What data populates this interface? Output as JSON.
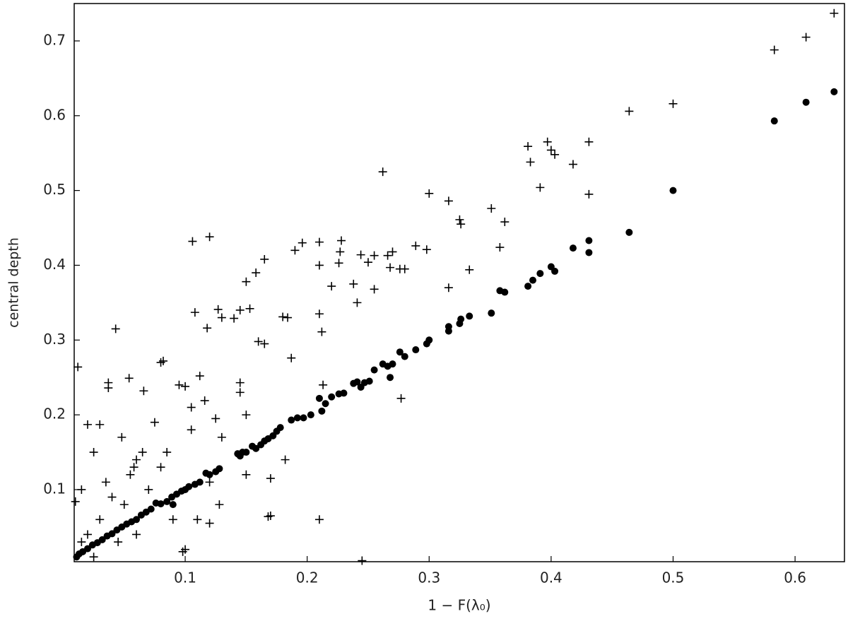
{
  "chart_data": {
    "type": "scatter",
    "xlabel": "1 − F(λ₀)",
    "ylabel": "central depth",
    "xlim": [
      0.009,
      0.6405
    ],
    "ylim": [
      0.0036,
      0.75
    ],
    "xticks": [
      0.1,
      0.2,
      0.3,
      0.4,
      0.5,
      0.6
    ],
    "yticks": [
      0.1,
      0.2,
      0.3,
      0.4,
      0.5,
      0.6,
      0.7
    ],
    "series": [
      {
        "marker": "o",
        "color": "#000000",
        "x": [
          0.632,
          0.609,
          0.583,
          0.5,
          0.464,
          0.431,
          0.431,
          0.418,
          0.403,
          0.4,
          0.391,
          0.385,
          0.381,
          0.362,
          0.358,
          0.351,
          0.333,
          0.326,
          0.325,
          0.316,
          0.316,
          0.3,
          0.298,
          0.289,
          0.28,
          0.276,
          0.27,
          0.268,
          0.266,
          0.262,
          0.255,
          0.251,
          0.247,
          0.244,
          0.241,
          0.238,
          0.23,
          0.226,
          0.22,
          0.215,
          0.212,
          0.21,
          0.203,
          0.197,
          0.192,
          0.187,
          0.178,
          0.175,
          0.172,
          0.168,
          0.165,
          0.162,
          0.158,
          0.155,
          0.15,
          0.147,
          0.145,
          0.143,
          0.128,
          0.125,
          0.12,
          0.117,
          0.112,
          0.108,
          0.103,
          0.1,
          0.097,
          0.093,
          0.089,
          0.085,
          0.08,
          0.076,
          0.072,
          0.068,
          0.064,
          0.06,
          0.056,
          0.052,
          0.048,
          0.044,
          0.04,
          0.036,
          0.032,
          0.028,
          0.024,
          0.02,
          0.016,
          0.013,
          0.011,
          0.09
        ],
        "values": [
          0.632,
          0.618,
          0.593,
          0.5,
          0.444,
          0.433,
          0.417,
          0.423,
          0.392,
          0.398,
          0.389,
          0.38,
          0.372,
          0.364,
          0.366,
          0.336,
          0.332,
          0.328,
          0.322,
          0.318,
          0.312,
          0.3,
          0.295,
          0.287,
          0.278,
          0.284,
          0.268,
          0.25,
          0.265,
          0.268,
          0.26,
          0.245,
          0.243,
          0.237,
          0.244,
          0.242,
          0.229,
          0.228,
          0.224,
          0.215,
          0.205,
          0.222,
          0.2,
          0.196,
          0.196,
          0.193,
          0.183,
          0.178,
          0.172,
          0.168,
          0.165,
          0.16,
          0.155,
          0.158,
          0.15,
          0.15,
          0.145,
          0.148,
          0.128,
          0.124,
          0.12,
          0.122,
          0.11,
          0.107,
          0.104,
          0.1,
          0.098,
          0.094,
          0.09,
          0.084,
          0.081,
          0.082,
          0.074,
          0.07,
          0.066,
          0.06,
          0.057,
          0.054,
          0.05,
          0.046,
          0.041,
          0.038,
          0.033,
          0.029,
          0.026,
          0.021,
          0.017,
          0.014,
          0.01,
          0.08
        ]
      },
      {
        "marker": "+",
        "color": "#000000",
        "x": [
          0.632,
          0.609,
          0.583,
          0.5,
          0.464,
          0.431,
          0.431,
          0.418,
          0.403,
          0.4,
          0.397,
          0.391,
          0.383,
          0.381,
          0.362,
          0.358,
          0.351,
          0.333,
          0.326,
          0.325,
          0.316,
          0.316,
          0.3,
          0.298,
          0.289,
          0.28,
          0.276,
          0.27,
          0.268,
          0.266,
          0.262,
          0.255,
          0.25,
          0.244,
          0.241,
          0.238,
          0.228,
          0.227,
          0.226,
          0.21,
          0.21,
          0.21,
          0.212,
          0.22,
          0.196,
          0.187,
          0.18,
          0.165,
          0.158,
          0.15,
          0.153,
          0.14,
          0.12,
          0.106,
          0.108,
          0.127,
          0.13,
          0.118,
          0.112,
          0.116,
          0.043,
          0.012,
          0.037,
          0.037,
          0.054,
          0.066,
          0.08,
          0.082,
          0.02,
          0.03,
          0.048,
          0.06,
          0.055,
          0.025,
          0.015,
          0.01,
          0.035,
          0.04,
          0.07,
          0.09,
          0.1,
          0.098,
          0.17,
          0.168,
          0.21,
          0.245,
          0.277,
          0.182,
          0.17,
          0.15,
          0.16,
          0.165,
          0.145,
          0.145,
          0.19,
          0.184,
          0.255,
          0.213,
          0.125,
          0.095,
          0.1,
          0.105,
          0.075,
          0.065,
          0.058,
          0.05,
          0.03,
          0.02,
          0.015,
          0.025,
          0.045,
          0.06,
          0.08,
          0.085,
          0.11,
          0.12,
          0.128,
          0.15,
          0.105,
          0.13,
          0.12,
          0.145
        ],
        "values": [
          0.737,
          0.705,
          0.688,
          0.616,
          0.606,
          0.565,
          0.495,
          0.535,
          0.548,
          0.554,
          0.565,
          0.504,
          0.538,
          0.559,
          0.458,
          0.424,
          0.476,
          0.394,
          0.455,
          0.461,
          0.486,
          0.37,
          0.496,
          0.421,
          0.426,
          0.395,
          0.395,
          0.418,
          0.397,
          0.413,
          0.525,
          0.413,
          0.404,
          0.414,
          0.35,
          0.375,
          0.433,
          0.418,
          0.403,
          0.431,
          0.4,
          0.335,
          0.311,
          0.372,
          0.43,
          0.276,
          0.331,
          0.408,
          0.39,
          0.378,
          0.342,
          0.329,
          0.438,
          0.432,
          0.337,
          0.341,
          0.33,
          0.316,
          0.252,
          0.219,
          0.315,
          0.264,
          0.243,
          0.236,
          0.249,
          0.232,
          0.27,
          0.272,
          0.187,
          0.187,
          0.17,
          0.14,
          0.12,
          0.15,
          0.1,
          0.084,
          0.11,
          0.09,
          0.1,
          0.06,
          0.02,
          0.017,
          0.065,
          0.064,
          0.06,
          0.005,
          0.222,
          0.14,
          0.115,
          0.2,
          0.298,
          0.295,
          0.243,
          0.23,
          0.42,
          0.33,
          0.368,
          0.24,
          0.195,
          0.24,
          0.238,
          0.18,
          0.19,
          0.15,
          0.13,
          0.08,
          0.06,
          0.04,
          0.03,
          0.01,
          0.03,
          0.04,
          0.13,
          0.15,
          0.06,
          0.055,
          0.08,
          0.12,
          0.21,
          0.17,
          0.11,
          0.34
        ]
      }
    ]
  }
}
